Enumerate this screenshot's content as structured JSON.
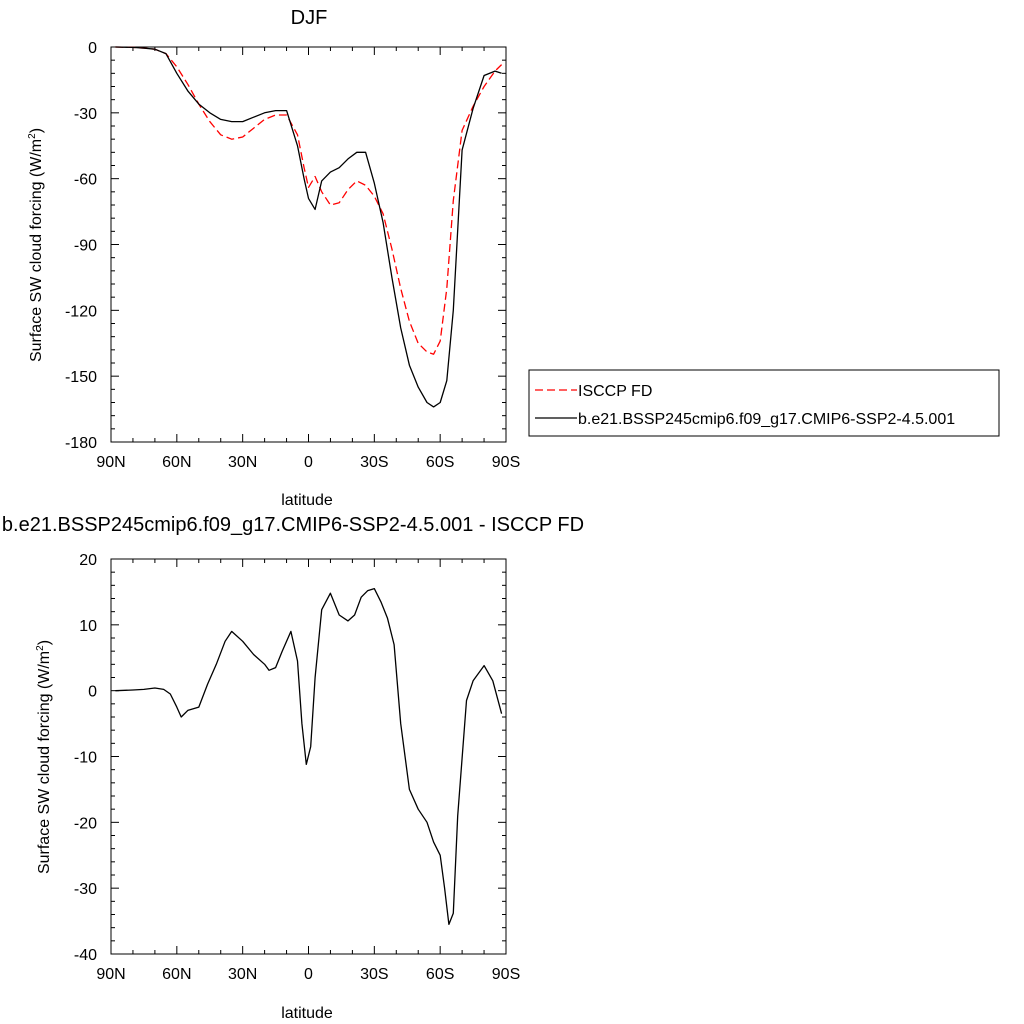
{
  "colors": {
    "axis": "#000000",
    "obs": "#ff0000",
    "model": "#000000"
  },
  "chart_data": [
    {
      "type": "line",
      "title": "DJF",
      "xlabel": "latitude",
      "ylabel_main": "Surface SW cloud forcing (W/m",
      "ylabel_sup": "2",
      "ylabel_close": ")",
      "xlim": [
        -90,
        90
      ],
      "ylim": [
        -180,
        0
      ],
      "xticks": [
        -90,
        -60,
        -30,
        0,
        30,
        60,
        90
      ],
      "xtick_labels": [
        "90N",
        "60N",
        "30N",
        "0",
        "30S",
        "60S",
        "90S"
      ],
      "yticks": [
        0,
        -30,
        -60,
        -90,
        -120,
        -150,
        -180
      ],
      "ytick_labels": [
        "0",
        "-30",
        "-60",
        "-90",
        "-120",
        "-150",
        "-180"
      ],
      "legend": {
        "placement": "right-middle",
        "entries": [
          "ISCCP FD",
          "b.e21.BSSP245cmip6.f09_g17.CMIP6-SSP2-4.5.001"
        ]
      },
      "series": [
        {
          "name": "ISCCP FD",
          "style": "dashed",
          "color": "#ff0000",
          "x": [
            -88,
            -80,
            -75,
            -70,
            -65,
            -60,
            -55,
            -50,
            -45,
            -40,
            -35,
            -30,
            -25,
            -20,
            -15,
            -10,
            -5,
            -2,
            0,
            3,
            6,
            10,
            14,
            18,
            22,
            26,
            30,
            34,
            38,
            42,
            46,
            50,
            54,
            57,
            60,
            63,
            66,
            70,
            75,
            80,
            85,
            88
          ],
          "y": [
            0,
            -0.2,
            -0.5,
            -1,
            -3,
            -9,
            -17,
            -26,
            -34,
            -40,
            -42,
            -41,
            -37,
            -33,
            -31,
            -31,
            -40,
            -55,
            -64,
            -59,
            -66,
            -72,
            -71,
            -65,
            -61,
            -63,
            -68,
            -76,
            -92,
            -110,
            -125,
            -135,
            -139,
            -140,
            -134,
            -110,
            -70,
            -38,
            -27,
            -18,
            -11,
            -8
          ]
        },
        {
          "name": "b.e21.BSSP245cmip6.f09_g17.CMIP6-SSP2-4.5.001",
          "style": "solid",
          "color": "#000000",
          "x": [
            -88,
            -80,
            -75,
            -70,
            -65,
            -60,
            -55,
            -50,
            -45,
            -40,
            -35,
            -30,
            -25,
            -20,
            -15,
            -10,
            -5,
            -2,
            0,
            3,
            6,
            10,
            14,
            18,
            22,
            26,
            30,
            34,
            38,
            42,
            46,
            50,
            54,
            57,
            60,
            63,
            66,
            70,
            75,
            80,
            85,
            88
          ],
          "y": [
            0,
            -0.2,
            -0.5,
            -1,
            -3,
            -12,
            -20,
            -26,
            -30,
            -33,
            -34,
            -34,
            -32,
            -30,
            -29,
            -29,
            -45,
            -60,
            -69,
            -74,
            -61,
            -57,
            -55,
            -51,
            -48,
            -48,
            -62,
            -80,
            -105,
            -128,
            -145,
            -155,
            -162,
            -164,
            -162,
            -152,
            -120,
            -47,
            -28,
            -13,
            -11,
            -12
          ]
        }
      ]
    },
    {
      "type": "line",
      "title": "b.e21.BSSP245cmip6.f09_g17.CMIP6-SSP2-4.5.001 - ISCCP FD",
      "xlabel": "latitude",
      "ylabel_main": "Surface SW cloud forcing (W/m",
      "ylabel_sup": "2",
      "ylabel_close": ")",
      "xlim": [
        -90,
        90
      ],
      "ylim": [
        -40,
        20
      ],
      "xticks": [
        -90,
        -60,
        -30,
        0,
        30,
        60,
        90
      ],
      "xtick_labels": [
        "90N",
        "60N",
        "30N",
        "0",
        "30S",
        "60S",
        "90S"
      ],
      "yticks": [
        20,
        10,
        0,
        -10,
        -20,
        -30,
        -40
      ],
      "ytick_labels": [
        "20",
        "10",
        "0",
        "-10",
        "-20",
        "-30",
        "-40"
      ],
      "series": [
        {
          "style": "solid",
          "color": "#000000",
          "x": [
            -88,
            -80,
            -75,
            -70,
            -66,
            -63,
            -60,
            -58,
            -55,
            -50,
            -46,
            -42,
            -38,
            -35,
            -30,
            -25,
            -20,
            -18,
            -15,
            -12,
            -8,
            -5,
            -3,
            -1,
            1,
            3,
            6,
            10,
            14,
            18,
            21,
            24,
            27,
            30,
            33,
            36,
            39,
            42,
            46,
            50,
            54,
            57,
            60,
            62,
            64,
            66,
            68,
            72,
            75,
            80,
            84,
            88
          ],
          "y": [
            0,
            0.1,
            0.2,
            0.4,
            0.2,
            -0.5,
            -2.5,
            -4,
            -3,
            -2.5,
            1,
            4,
            7.5,
            9,
            7.5,
            5.5,
            4,
            3.1,
            3.5,
            6,
            9,
            4.5,
            -5,
            -11.2,
            -8.5,
            2,
            12.3,
            14.8,
            11.5,
            10.6,
            11.5,
            14.2,
            15.2,
            15.5,
            13.5,
            11,
            7,
            -5,
            -15,
            -18,
            -20,
            -23,
            -25,
            -30,
            -35.5,
            -33.8,
            -19,
            -1.5,
            1.5,
            3.8,
            1.5,
            -3.5
          ]
        }
      ]
    }
  ]
}
